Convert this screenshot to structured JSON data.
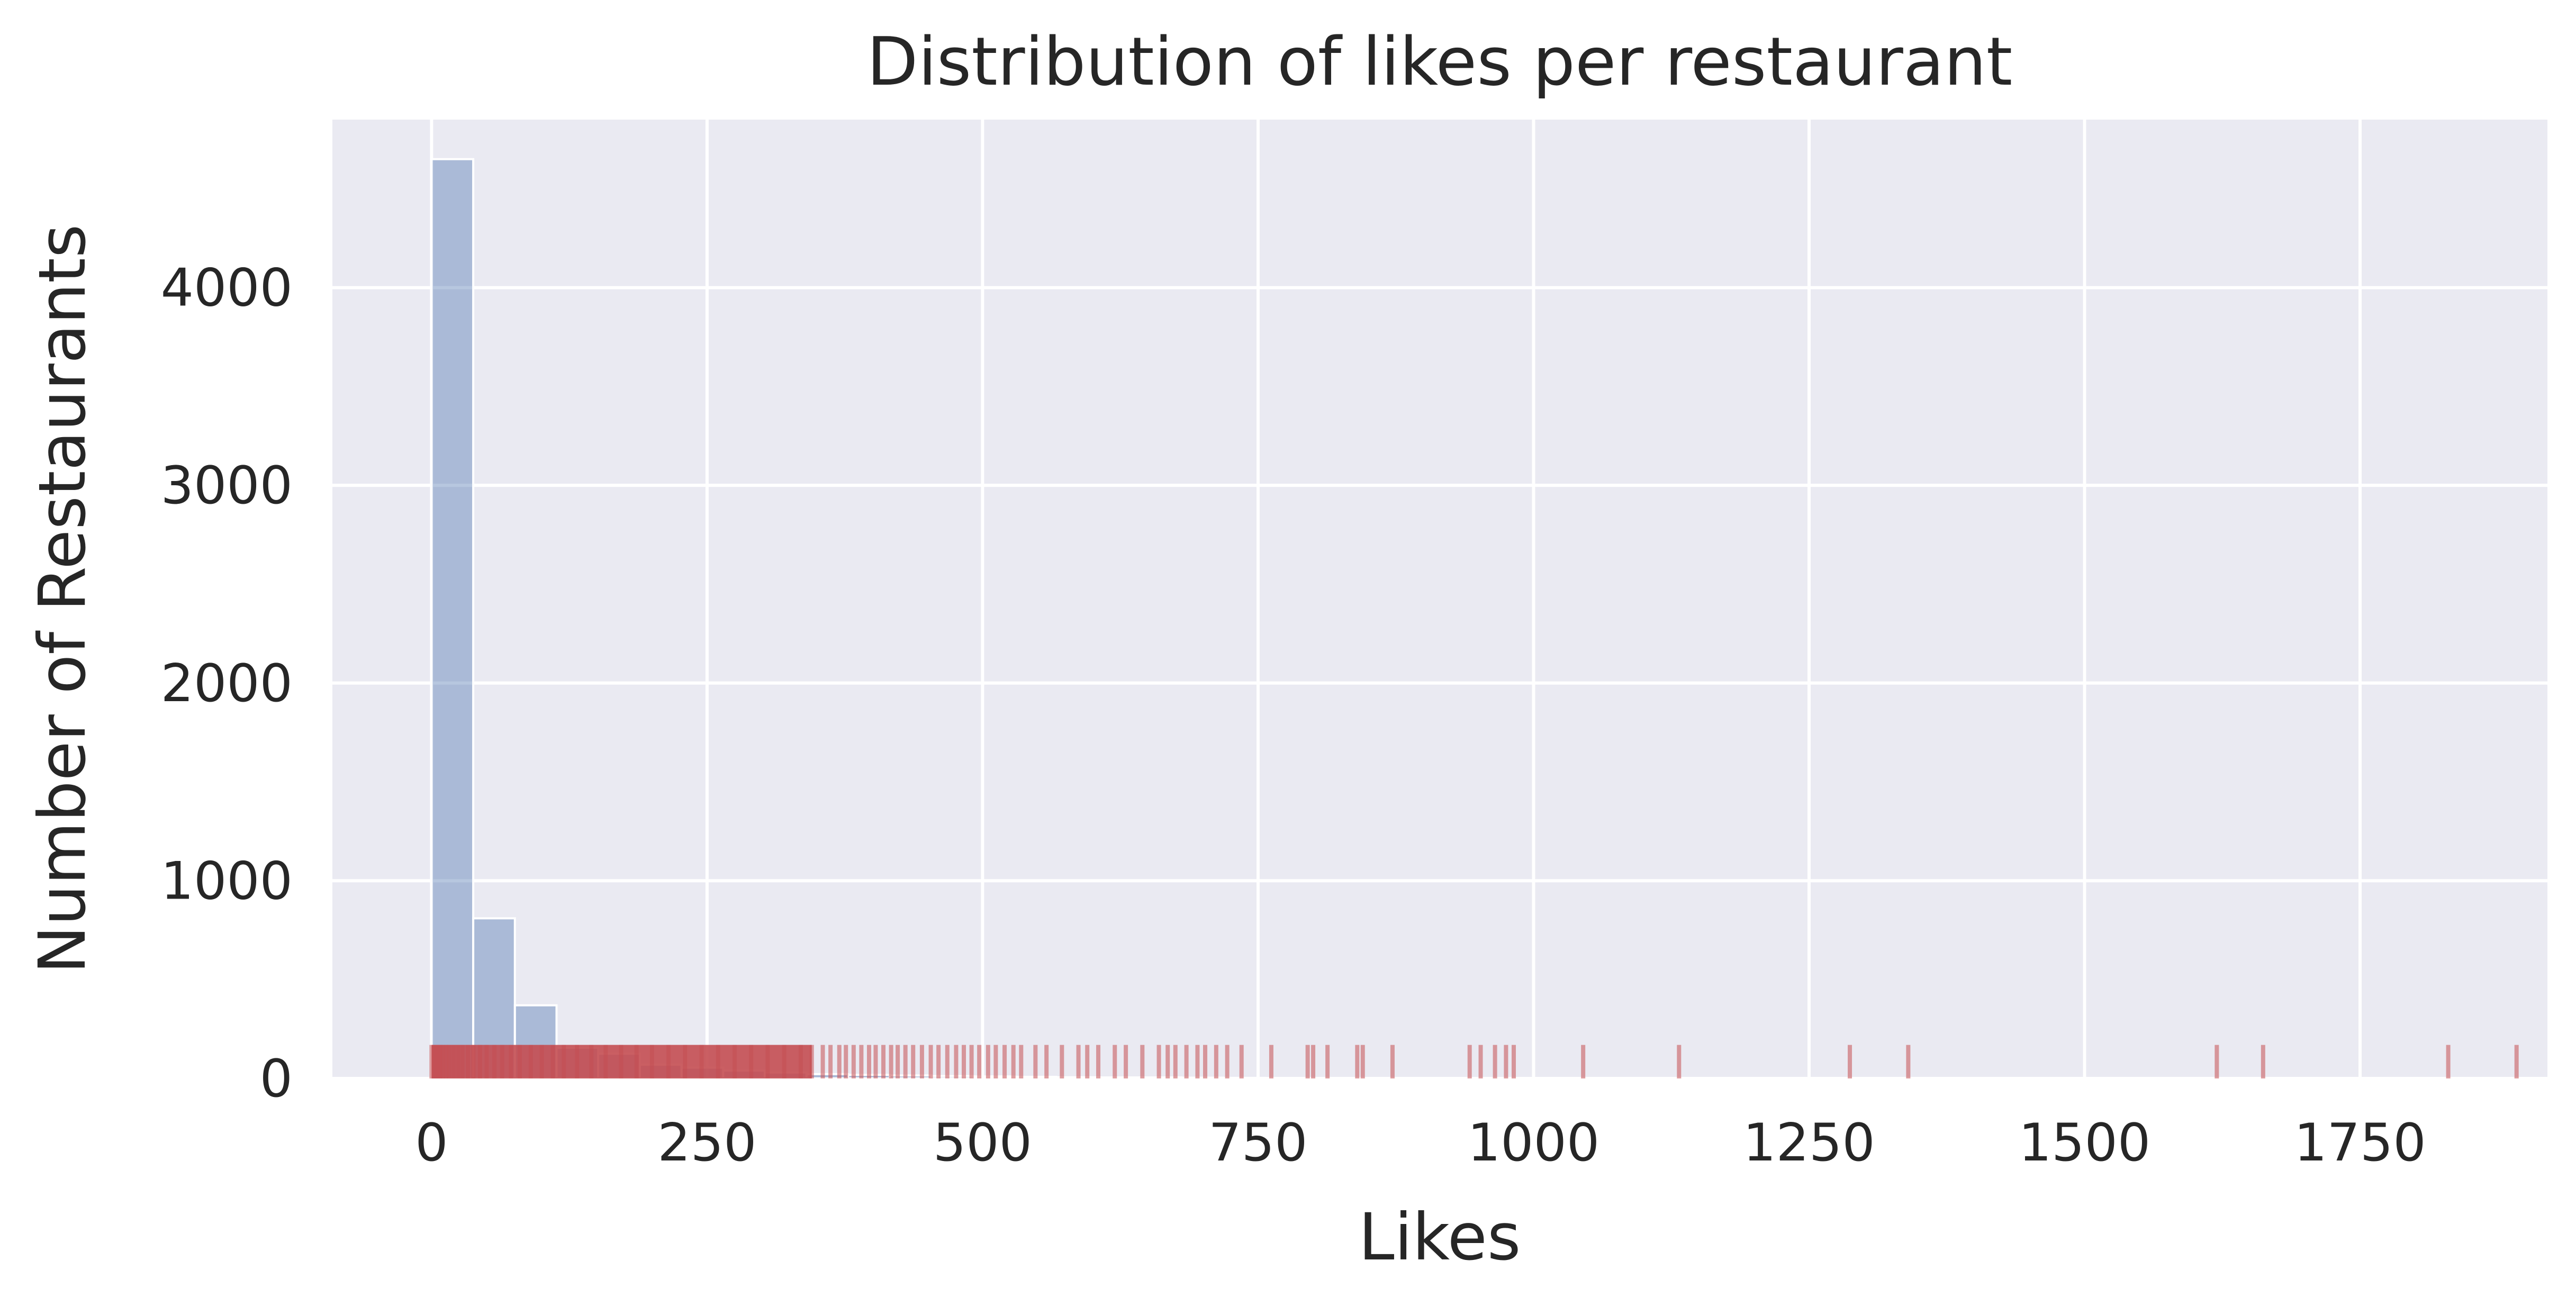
{
  "chart_data": {
    "type": "bar",
    "title": "Distribution of likes per restaurant",
    "xlabel": "Likes",
    "ylabel": "Number of Restaurants",
    "xlim": [
      -90,
      1920
    ],
    "ylim": [
      0,
      4850
    ],
    "xticks": [
      0,
      250,
      500,
      750,
      1000,
      1250,
      1500,
      1750
    ],
    "yticks": [
      0,
      1000,
      2000,
      3000,
      4000
    ],
    "grid": true,
    "bin_width": 37.8,
    "bins": [
      {
        "x0": 0,
        "x1": 37.8,
        "count": 4650
      },
      {
        "x0": 37.8,
        "x1": 75.6,
        "count": 810
      },
      {
        "x0": 75.6,
        "x1": 113.4,
        "count": 370
      },
      {
        "x0": 113.4,
        "x1": 151.2,
        "count": 155
      },
      {
        "x0": 151.2,
        "x1": 189.0,
        "count": 125
      },
      {
        "x0": 189.0,
        "x1": 226.8,
        "count": 70
      },
      {
        "x0": 226.8,
        "x1": 264.6,
        "count": 55
      },
      {
        "x0": 264.6,
        "x1": 302.4,
        "count": 40
      },
      {
        "x0": 302.4,
        "x1": 340.2,
        "count": 30
      },
      {
        "x0": 340.2,
        "x1": 378.0,
        "count": 22
      },
      {
        "x0": 378.0,
        "x1": 415.8,
        "count": 18
      },
      {
        "x0": 415.8,
        "x1": 453.6,
        "count": 15
      },
      {
        "x0": 453.6,
        "x1": 491.4,
        "count": 12
      },
      {
        "x0": 491.4,
        "x1": 529.2,
        "count": 10
      },
      {
        "x0": 529.2,
        "x1": 567.0,
        "count": 8
      },
      {
        "x0": 567.0,
        "x1": 604.8,
        "count": 6
      },
      {
        "x0": 604.8,
        "x1": 642.6,
        "count": 5
      },
      {
        "x0": 642.6,
        "x1": 680.4,
        "count": 5
      },
      {
        "x0": 680.4,
        "x1": 718.2,
        "count": 4
      },
      {
        "x0": 718.2,
        "x1": 756.0,
        "count": 3
      }
    ],
    "rug": [
      0,
      2,
      4,
      6,
      8,
      10,
      13,
      16,
      20,
      24,
      28,
      33,
      38,
      44,
      50,
      57,
      64,
      72,
      80,
      90,
      100,
      110,
      120,
      132,
      145,
      158,
      172,
      186,
      200,
      215,
      230,
      245,
      260,
      275,
      290,
      305,
      320,
      335,
      345,
      355,
      362,
      370,
      376,
      383,
      390,
      397,
      403,
      410,
      417,
      423,
      430,
      437,
      445,
      453,
      460,
      468,
      476,
      483,
      490,
      497,
      505,
      512,
      520,
      528,
      535,
      548,
      558,
      572,
      587,
      595,
      605,
      620,
      630,
      645,
      660,
      668,
      675,
      685,
      695,
      702,
      712,
      722,
      735,
      762,
      795,
      800,
      813,
      840,
      845,
      872,
      942,
      952,
      965,
      975,
      982,
      1045,
      1132,
      1287,
      1340,
      1620,
      1662,
      1830,
      1892
    ],
    "colors": {
      "background": "#eaeaf2",
      "grid": "#ffffff",
      "bars": "#4c72b0",
      "bars_alpha": 0.4,
      "rug": "#c44e52",
      "text": "#262626"
    }
  }
}
